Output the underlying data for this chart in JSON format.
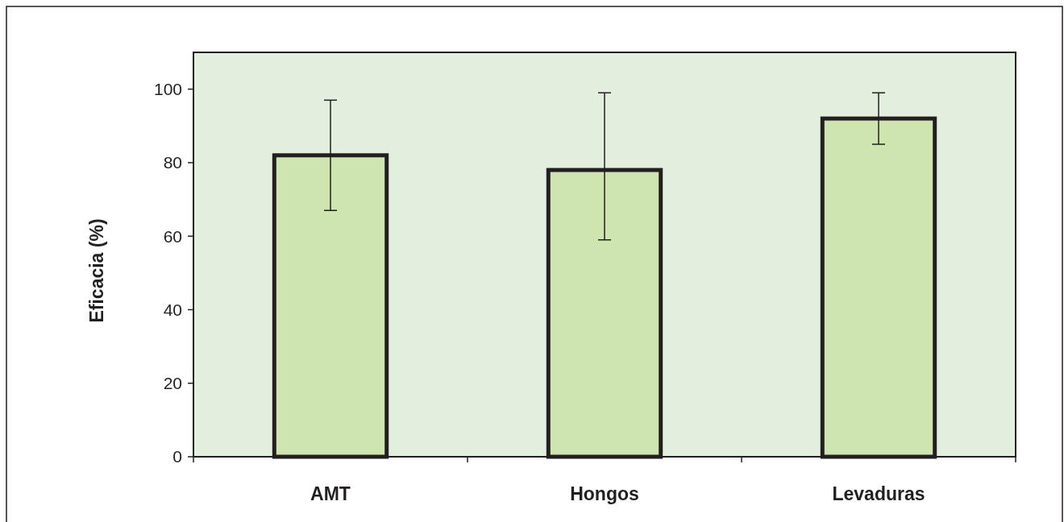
{
  "chart_data": {
    "type": "bar",
    "ylabel": "Eficacia (%)",
    "categories": [
      "AMT",
      "Hongos",
      "Levaduras"
    ],
    "values": [
      82,
      78,
      92
    ],
    "errors": [
      [
        67,
        97
      ],
      [
        59,
        99
      ],
      [
        85,
        99
      ]
    ],
    "color": "#cfe5b0",
    "ylim": [
      0,
      110
    ],
    "yticks": [
      0,
      20,
      40,
      60,
      80,
      100
    ],
    "grid": false
  }
}
